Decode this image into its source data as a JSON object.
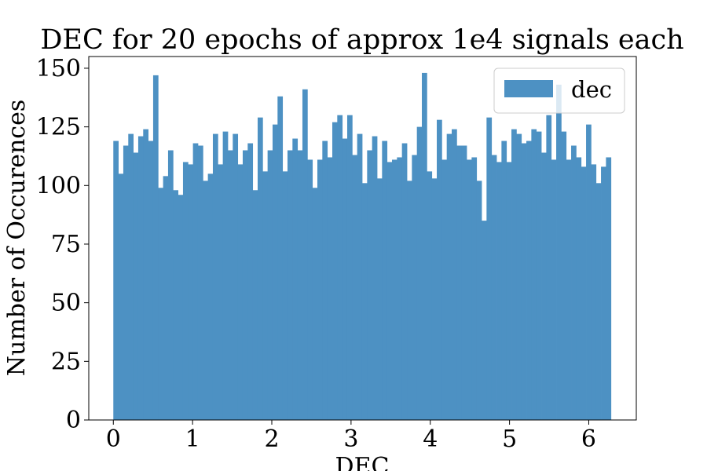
{
  "chart_data": {
    "type": "bar",
    "title": "DEC for 20 epochs of approx 1e4 signals each",
    "xlabel": "DEC",
    "ylabel": "Number of Occurences",
    "xlim": [
      -0.31,
      6.6
    ],
    "ylim": [
      0,
      155
    ],
    "xticks": [
      0,
      1,
      2,
      3,
      4,
      5,
      6
    ],
    "yticks": [
      0,
      25,
      50,
      75,
      100,
      125,
      150
    ],
    "legend": {
      "position": "top-right",
      "label": "dec"
    },
    "bar_color": "#4d91c3",
    "grid": false,
    "bin_start": 0,
    "bin_width": 0.0628,
    "values": [
      119,
      105,
      117,
      122,
      114,
      121,
      124,
      119,
      147,
      99,
      104,
      115,
      98,
      96,
      110,
      109,
      118,
      117,
      102,
      105,
      122,
      109,
      123,
      115,
      122,
      109,
      115,
      118,
      98,
      129,
      106,
      115,
      126,
      138,
      106,
      115,
      120,
      115,
      141,
      111,
      99,
      111,
      119,
      112,
      127,
      130,
      120,
      130,
      113,
      122,
      101,
      115,
      121,
      103,
      119,
      110,
      111,
      112,
      118,
      102,
      113,
      125,
      148,
      106,
      103,
      128,
      111,
      122,
      124,
      117,
      117,
      111,
      112,
      102,
      85,
      129,
      113,
      110,
      119,
      110,
      124,
      122,
      118,
      119,
      124,
      123,
      114,
      130,
      111,
      143,
      123,
      111,
      117,
      112,
      108,
      126,
      109,
      101,
      108,
      112
    ]
  }
}
